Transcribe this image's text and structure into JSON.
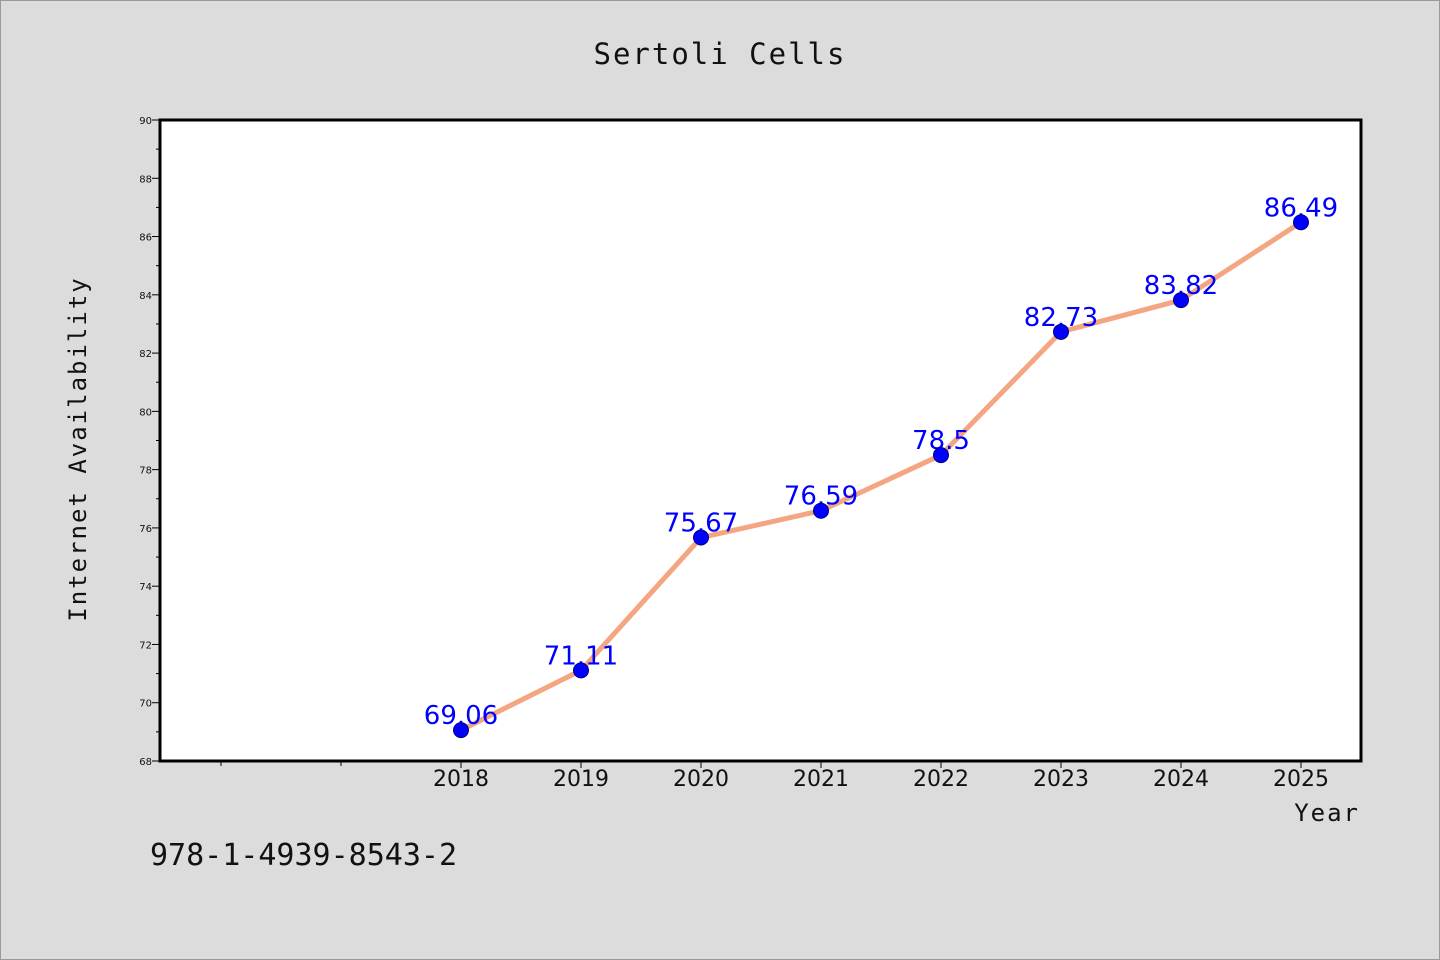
{
  "chart_data": {
    "type": "line",
    "title": "Sertoli Cells",
    "xlabel": "Year",
    "ylabel": "Internet Availability",
    "categories": [
      "2018",
      "2019",
      "2020",
      "2021",
      "2022",
      "2023",
      "2024",
      "2025"
    ],
    "values": [
      69.06,
      71.11,
      75.67,
      76.59,
      78.5,
      82.73,
      83.82,
      86.49
    ],
    "value_labels": [
      "69.06",
      "71.11",
      "75.67",
      "76.59",
      "78.5",
      "82.73",
      "83.82",
      "86.49"
    ],
    "ylim": [
      68,
      90
    ],
    "yticks": [
      "68",
      "70",
      "72",
      "74",
      "76",
      "78",
      "80",
      "82",
      "84",
      "86",
      "88",
      "90"
    ],
    "grid": false,
    "legend": "none",
    "colors": {
      "line": "#f4a582",
      "marker": "#0000ff",
      "data_label": "#0000ff",
      "background": "#dcdcdc",
      "plot_area": "#ffffff"
    }
  },
  "footnote": "978-1-4939-8543-2"
}
